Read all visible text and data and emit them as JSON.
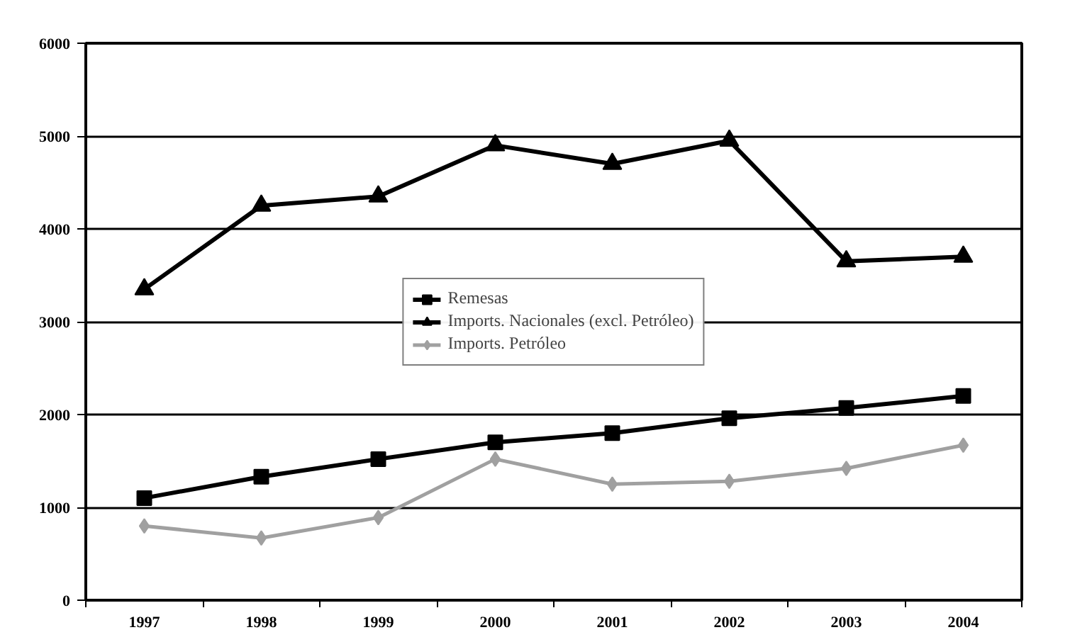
{
  "chart_data": {
    "type": "line",
    "categories": [
      "1997",
      "1998",
      "1999",
      "2000",
      "2001",
      "2002",
      "2003",
      "2004"
    ],
    "series": [
      {
        "name": "Remesas",
        "color": "#000000",
        "marker": "square",
        "values": [
          1100,
          1330,
          1520,
          1700,
          1800,
          1960,
          2070,
          2200
        ]
      },
      {
        "name": "Imports. Nacionales (excl. Petróleo)",
        "color": "#000000",
        "marker": "triangle",
        "values": [
          3350,
          4250,
          4350,
          4900,
          4700,
          4950,
          3650,
          3700
        ]
      },
      {
        "name": "Imports. Petróleo",
        "color": "#a0a0a0",
        "marker": "diamond",
        "values": [
          800,
          670,
          890,
          1520,
          1250,
          1280,
          1420,
          1670
        ]
      }
    ],
    "ylim": [
      0,
      6000
    ],
    "yticks": [
      0,
      1000,
      2000,
      3000,
      4000,
      5000,
      6000
    ],
    "grid": "y",
    "legend": "center",
    "line_style": "solid"
  }
}
